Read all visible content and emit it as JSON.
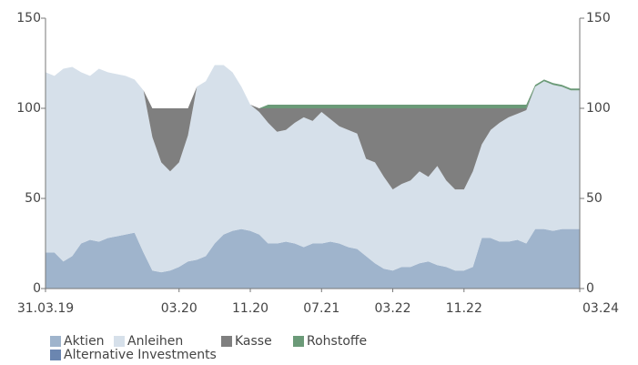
{
  "chart_data": {
    "type": "stacked_area",
    "categories": [
      "31.03.19",
      null,
      null,
      null,
      null,
      null,
      null,
      null,
      null,
      null,
      null,
      null,
      null,
      null,
      null,
      "03.20",
      null,
      null,
      null,
      null,
      null,
      null,
      null,
      "11.20",
      null,
      null,
      null,
      null,
      null,
      null,
      null,
      "07.21",
      null,
      null,
      null,
      null,
      null,
      null,
      null,
      "03.22",
      null,
      null,
      null,
      null,
      null,
      null,
      null,
      "11.22",
      null,
      null,
      null,
      null,
      null,
      null,
      null,
      null,
      null,
      null,
      null,
      null,
      "03.24"
    ],
    "series": [
      {
        "name": "Aktien",
        "color": "#9fb4cc",
        "values": [
          20,
          20,
          15,
          18,
          25,
          27,
          26,
          28,
          29,
          30,
          31,
          20,
          10,
          9,
          10,
          12,
          15,
          16,
          18,
          25,
          30,
          32,
          33,
          32,
          30,
          25,
          25,
          26,
          25,
          23,
          25,
          25,
          26,
          25,
          23,
          22,
          18,
          14,
          11,
          10,
          12,
          12,
          14,
          15,
          13,
          12,
          10,
          10,
          12,
          28,
          28,
          26,
          26,
          27,
          25,
          33,
          33,
          32,
          33,
          33,
          33
        ]
      },
      {
        "name": "Anleihen",
        "color": "#d6e0ea",
        "values": [
          100,
          98,
          107,
          105,
          95,
          91,
          96,
          92,
          90,
          88,
          85,
          90,
          74,
          61,
          55,
          58,
          70,
          96,
          97,
          99,
          94,
          88,
          79,
          70,
          68,
          67,
          62,
          62,
          67,
          72,
          68,
          73,
          68,
          65,
          65,
          64,
          54,
          56,
          51,
          45,
          46,
          48,
          51,
          47,
          55,
          48,
          45,
          45,
          53,
          52,
          60,
          66,
          69,
          70,
          74,
          79,
          82,
          81,
          79,
          77,
          77
        ]
      },
      {
        "name": "Kasse",
        "color": "#7f7f7f",
        "values": [
          0,
          0,
          0,
          0,
          0,
          0,
          0,
          0,
          0,
          0,
          0,
          0,
          16,
          30,
          35,
          30,
          15,
          0,
          0,
          0,
          0,
          0,
          0,
          0,
          2,
          8,
          13,
          12,
          8,
          5,
          7,
          2,
          6,
          10,
          12,
          14,
          28,
          30,
          38,
          45,
          42,
          40,
          35,
          38,
          32,
          40,
          45,
          45,
          35,
          20,
          12,
          8,
          5,
          3,
          1,
          0,
          0,
          0,
          0,
          0,
          0
        ]
      },
      {
        "name": "Rohstoffe",
        "color": "#6b9a78",
        "values": [
          0,
          0,
          0,
          0,
          0,
          0,
          0,
          0,
          0,
          0,
          0,
          0,
          0,
          0,
          0,
          0,
          0,
          0,
          0,
          0,
          0,
          0,
          0,
          0,
          0,
          2,
          2,
          2,
          2,
          2,
          2,
          2,
          2,
          2,
          2,
          2,
          2,
          2,
          2,
          2,
          2,
          2,
          2,
          2,
          2,
          2,
          2,
          2,
          2,
          2,
          2,
          2,
          2,
          2,
          2,
          1,
          1,
          1,
          1,
          1,
          1
        ]
      },
      {
        "name": "Alternative Investments",
        "color": "#6b86b0",
        "values": [
          0,
          0,
          0,
          0,
          0,
          0,
          0,
          0,
          0,
          0,
          0,
          0,
          0,
          0,
          0,
          0,
          0,
          0,
          0,
          0,
          0,
          0,
          0,
          0,
          0,
          0,
          0,
          0,
          0,
          0,
          0,
          0,
          0,
          0,
          0,
          0,
          0,
          0,
          0,
          0,
          0,
          0,
          0,
          0,
          0,
          0,
          0,
          0,
          0,
          0,
          0,
          0,
          0,
          0,
          0,
          0,
          0,
          0,
          0,
          0,
          0
        ]
      }
    ],
    "ylim": [
      0,
      150
    ],
    "yticks": [
      0,
      50,
      100,
      150
    ],
    "y2lim": [
      0,
      150
    ],
    "y2ticks": [
      0,
      50,
      100,
      150
    ]
  }
}
